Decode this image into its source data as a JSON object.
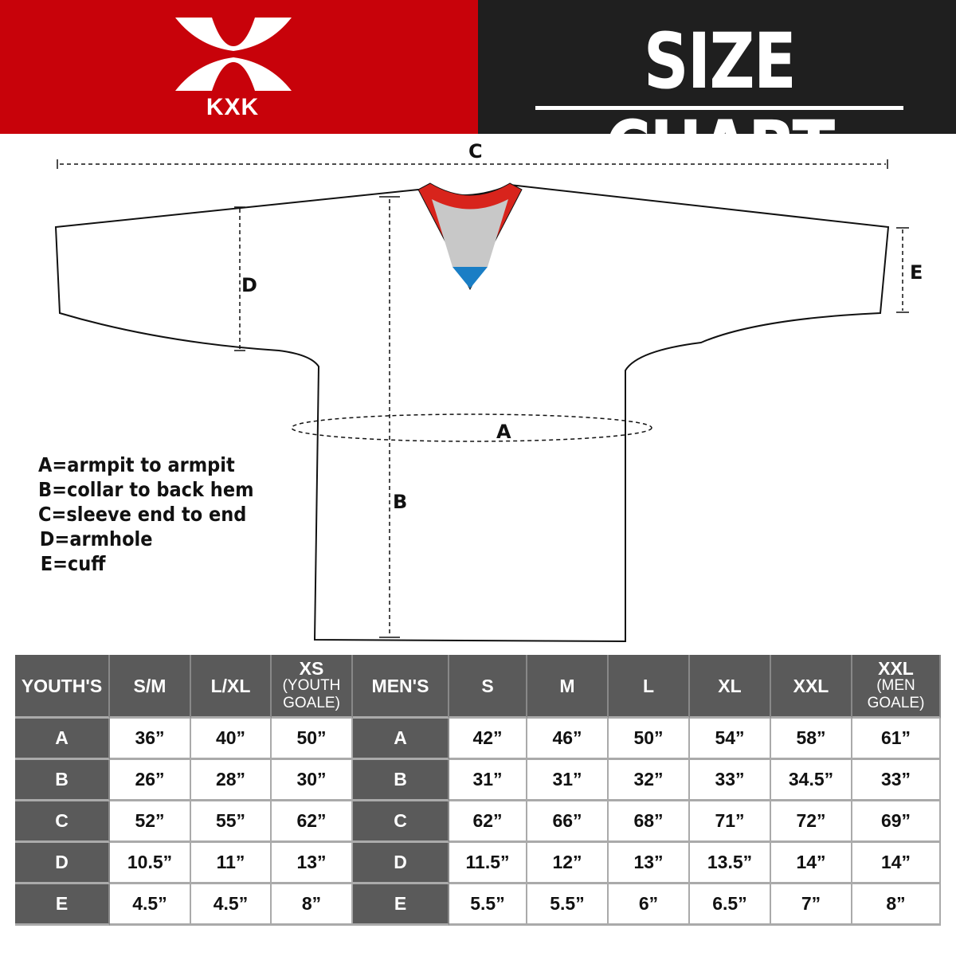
{
  "brand": {
    "logo_text": "KXK",
    "accent": "#c8020a",
    "dark": "#1f1f1f"
  },
  "header": {
    "title": "SIZE CHART"
  },
  "diagram": {
    "labels": {
      "a": "A",
      "b": "B",
      "c": "C",
      "d": "D",
      "e": "E"
    }
  },
  "legend": [
    "A=armpit to armpit",
    "B=collar to back hem",
    "C=sleeve end to end",
    "D=armhole",
    "E=cuff"
  ],
  "table": {
    "headers": [
      {
        "main": "YOUTH'S",
        "sub": ""
      },
      {
        "main": "S/M",
        "sub": ""
      },
      {
        "main": "L/XL",
        "sub": ""
      },
      {
        "main": "XS",
        "sub": "(YOUTH GOALE)"
      },
      {
        "main": "MEN'S",
        "sub": ""
      },
      {
        "main": "S",
        "sub": ""
      },
      {
        "main": "M",
        "sub": ""
      },
      {
        "main": "L",
        "sub": ""
      },
      {
        "main": "XL",
        "sub": ""
      },
      {
        "main": "XXL",
        "sub": ""
      },
      {
        "main": "XXL",
        "sub": "(MEN GOALE)"
      }
    ],
    "rows": [
      [
        "A",
        "36”",
        "40”",
        "50”",
        "A",
        "42”",
        "46”",
        "50”",
        "54”",
        "58”",
        "61”"
      ],
      [
        "B",
        "26”",
        "28”",
        "30”",
        "B",
        "31”",
        "31”",
        "32”",
        "33”",
        "34.5”",
        "33”"
      ],
      [
        "C",
        "52”",
        "55”",
        "62”",
        "C",
        "62”",
        "66”",
        "68”",
        "71”",
        "72”",
        "69”"
      ],
      [
        "D",
        "10.5”",
        "11”",
        "13”",
        "D",
        "11.5”",
        "12”",
        "13”",
        "13.5”",
        "14”",
        "14”"
      ],
      [
        "E",
        "4.5”",
        "4.5”",
        "8”",
        "E",
        "5.5”",
        "5.5”",
        "6”",
        "6.5”",
        "7”",
        "8”"
      ]
    ]
  }
}
